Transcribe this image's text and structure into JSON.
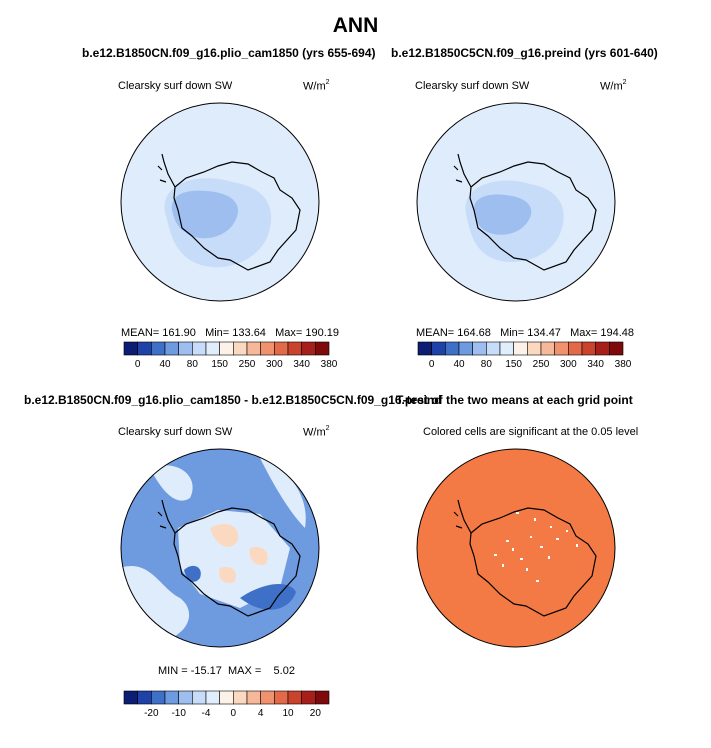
{
  "main_title": "ANN",
  "panels": {
    "tl": {
      "title": "b.e12.B1850CN.f09_g16.plio_cam1850 (yrs 655-694)",
      "variable": "Clearsky surf down SW",
      "unit_base": "W/m",
      "unit_exp": "2",
      "stats": "MEAN= 161.90   Min= 133.64   Max= 190.19"
    },
    "tr": {
      "title": "b.e12.B1850C5CN.f09_g16.preind (yrs 601-640)",
      "variable": "Clearsky surf down SW",
      "unit_base": "W/m",
      "unit_exp": "2",
      "stats": "MEAN= 164.68   Min= 134.47   Max= 194.48"
    },
    "bl": {
      "title": "b.e12.B1850CN.f09_g16.plio_cam1850 - b.e12.B1850C5CN.f09_g16.preind",
      "variable": "Clearsky surf down SW",
      "unit_base": "W/m",
      "unit_exp": "2",
      "stats": "MIN = -15.17  MAX =    5.02"
    },
    "br": {
      "title": "T-test of the two means at each grid point",
      "note": "Colored cells are significant at the 0.05 level"
    }
  },
  "chart_data": [
    {
      "type": "heatmap",
      "projection": "south-polar-stereographic",
      "title": "b.e12.B1850CN.f09_g16.plio_cam1850 (yrs 655-694)",
      "variable": "Clearsky surf down SW",
      "units": "W/m^2",
      "mean": 161.9,
      "min": 133.64,
      "max": 190.19,
      "colorbar_levels": [
        0,
        20,
        40,
        60,
        80,
        100,
        150,
        200,
        250,
        280,
        300,
        320,
        340,
        360,
        380
      ],
      "colorbar_tick_labels": [
        "0",
        "40",
        "80",
        "150",
        "250",
        "300",
        "340",
        "380"
      ],
      "colorbar_colors": [
        "#0c1d74",
        "#1f42a8",
        "#3f70c8",
        "#6e9ae0",
        "#9dbeef",
        "#c6dcf8",
        "#e0edfb",
        "#fdf2e8",
        "#fbd9c1",
        "#f6b898",
        "#f0926e",
        "#e26a48",
        "#c9432d",
        "#a61f1b",
        "#7e0a0c"
      ]
    },
    {
      "type": "heatmap",
      "projection": "south-polar-stereographic",
      "title": "b.e12.B1850C5CN.f09_g16.preind (yrs 601-640)",
      "variable": "Clearsky surf down SW",
      "units": "W/m^2",
      "mean": 164.68,
      "min": 134.47,
      "max": 194.48,
      "colorbar_levels": [
        0,
        20,
        40,
        60,
        80,
        100,
        150,
        200,
        250,
        280,
        300,
        320,
        340,
        360,
        380
      ],
      "colorbar_tick_labels": [
        "0",
        "40",
        "80",
        "150",
        "250",
        "300",
        "340",
        "380"
      ],
      "colorbar_colors": [
        "#0c1d74",
        "#1f42a8",
        "#3f70c8",
        "#6e9ae0",
        "#9dbeef",
        "#c6dcf8",
        "#e0edfb",
        "#fdf2e8",
        "#fbd9c1",
        "#f6b898",
        "#f0926e",
        "#e26a48",
        "#c9432d",
        "#a61f1b",
        "#7e0a0c"
      ]
    },
    {
      "type": "heatmap",
      "projection": "south-polar-stereographic",
      "title": "b.e12.B1850CN.f09_g16.plio_cam1850 - b.e12.B1850C5CN.f09_g16.preind",
      "variable": "Clearsky surf down SW",
      "units": "W/m^2",
      "min": -15.17,
      "max": 5.02,
      "colorbar_levels": [
        -25,
        -20,
        -15,
        -10,
        -7,
        -4,
        -2,
        0,
        2,
        4,
        7,
        10,
        15,
        20,
        25
      ],
      "colorbar_tick_labels": [
        "-20",
        "-10",
        "-4",
        "0",
        "4",
        "10",
        "20"
      ],
      "colorbar_colors": [
        "#0c1d74",
        "#1f42a8",
        "#3f70c8",
        "#6e9ae0",
        "#9dbeef",
        "#c6dcf8",
        "#e0edfb",
        "#fdf2e8",
        "#fbd9c1",
        "#f6b898",
        "#f0926e",
        "#e26a48",
        "#c9432d",
        "#a61f1b",
        "#7e0a0c"
      ]
    },
    {
      "type": "heatmap",
      "projection": "south-polar-stereographic",
      "title": "T-test of the two means at each grid point",
      "note": "Colored cells are significant at the 0.05 level",
      "significant_color": "#f47a45"
    }
  ],
  "colors": {
    "ocean_light": "#dfecfb",
    "land_mid": "#c6dcf8",
    "land_core": "#9dbeef",
    "diff_neg_strong": "#3f70c8",
    "diff_neg": "#6e9ae0",
    "diff_pos": "#fbd9c1",
    "significant": "#f47a45"
  }
}
